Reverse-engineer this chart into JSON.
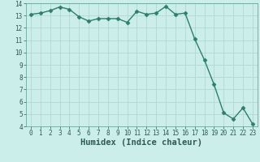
{
  "xlabel": "Humidex (Indice chaleur)",
  "x": [
    0,
    1,
    2,
    3,
    4,
    5,
    6,
    7,
    8,
    9,
    10,
    11,
    12,
    13,
    14,
    15,
    16,
    17,
    18,
    19,
    20,
    21,
    22,
    23
  ],
  "y": [
    13.1,
    13.2,
    13.4,
    13.7,
    13.5,
    12.9,
    12.55,
    12.75,
    12.75,
    12.75,
    12.45,
    13.35,
    13.1,
    13.2,
    13.75,
    13.1,
    13.2,
    11.1,
    9.4,
    7.4,
    5.1,
    4.6,
    5.5,
    4.2
  ],
  "line_color": "#2e7d6e",
  "marker": "D",
  "marker_size": 2.5,
  "bg_color": "#cceeeb",
  "grid_color": "#b0d8d4",
  "ylim": [
    4,
    14
  ],
  "xlim": [
    -0.5,
    23.5
  ],
  "yticks": [
    4,
    5,
    6,
    7,
    8,
    9,
    10,
    11,
    12,
    13,
    14
  ],
  "xticks": [
    0,
    1,
    2,
    3,
    4,
    5,
    6,
    7,
    8,
    9,
    10,
    11,
    12,
    13,
    14,
    15,
    16,
    17,
    18,
    19,
    20,
    21,
    22,
    23
  ],
  "tick_fontsize": 5.5,
  "xlabel_fontsize": 7.5,
  "linewidth": 1.0
}
